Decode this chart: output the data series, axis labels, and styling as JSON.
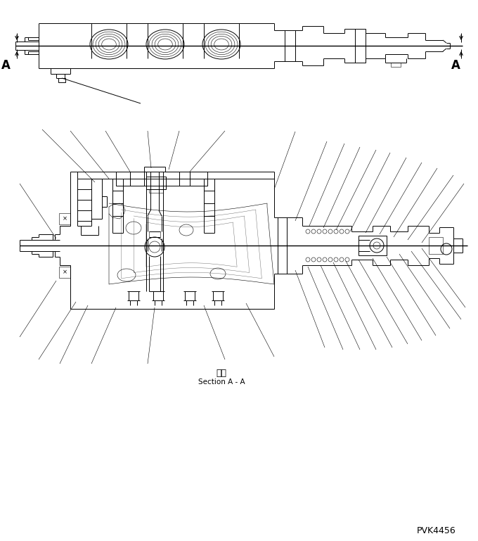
{
  "bg_color": "#ffffff",
  "line_color": "#000000",
  "lw": 0.7,
  "tlw": 0.4,
  "thw": 1.0,
  "fig_width": 6.8,
  "fig_height": 7.69,
  "dpi": 100,
  "section_jp": "断面",
  "section_en": "Section A - A",
  "part_number": "PVK4456"
}
